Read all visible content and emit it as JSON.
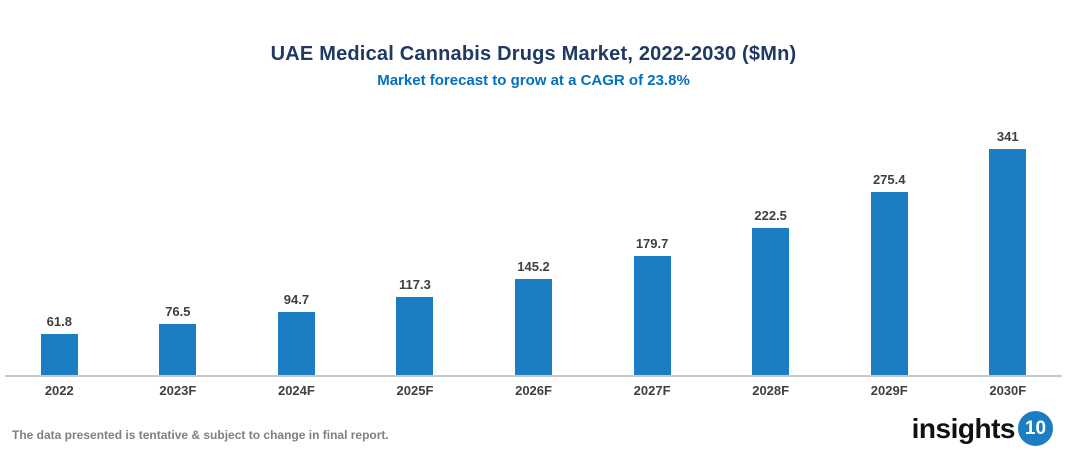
{
  "chart_data": {
    "type": "bar",
    "title": "UAE Medical Cannabis Drugs Market, 2022-2030 ($Mn)",
    "subtitle": "Market forecast to grow at a CAGR of 23.8%",
    "categories": [
      "2022",
      "2023F",
      "2024F",
      "2025F",
      "2026F",
      "2027F",
      "2028F",
      "2029F",
      "2030F"
    ],
    "values": [
      61.8,
      76.5,
      94.7,
      117.3,
      145.2,
      179.7,
      222.5,
      275.4,
      341
    ],
    "xlabel": "",
    "ylabel": "",
    "ylim": [
      0,
      341
    ],
    "data_labels": true,
    "grid": false,
    "y_axis_visible": false,
    "legend": "none",
    "bar_color": "#1b7ec3"
  },
  "colors": {
    "title": "#1f3864",
    "subtitle": "#0070c0",
    "value_label": "#404040",
    "axis_line": "#c9c9c9",
    "disclaimer": "#808080",
    "logo_badge": "#1b7ec3"
  },
  "footer": {
    "disclaimer": "The data presented is tentative & subject to change in final report.",
    "logo": {
      "text": "insights",
      "badge": "10"
    }
  }
}
